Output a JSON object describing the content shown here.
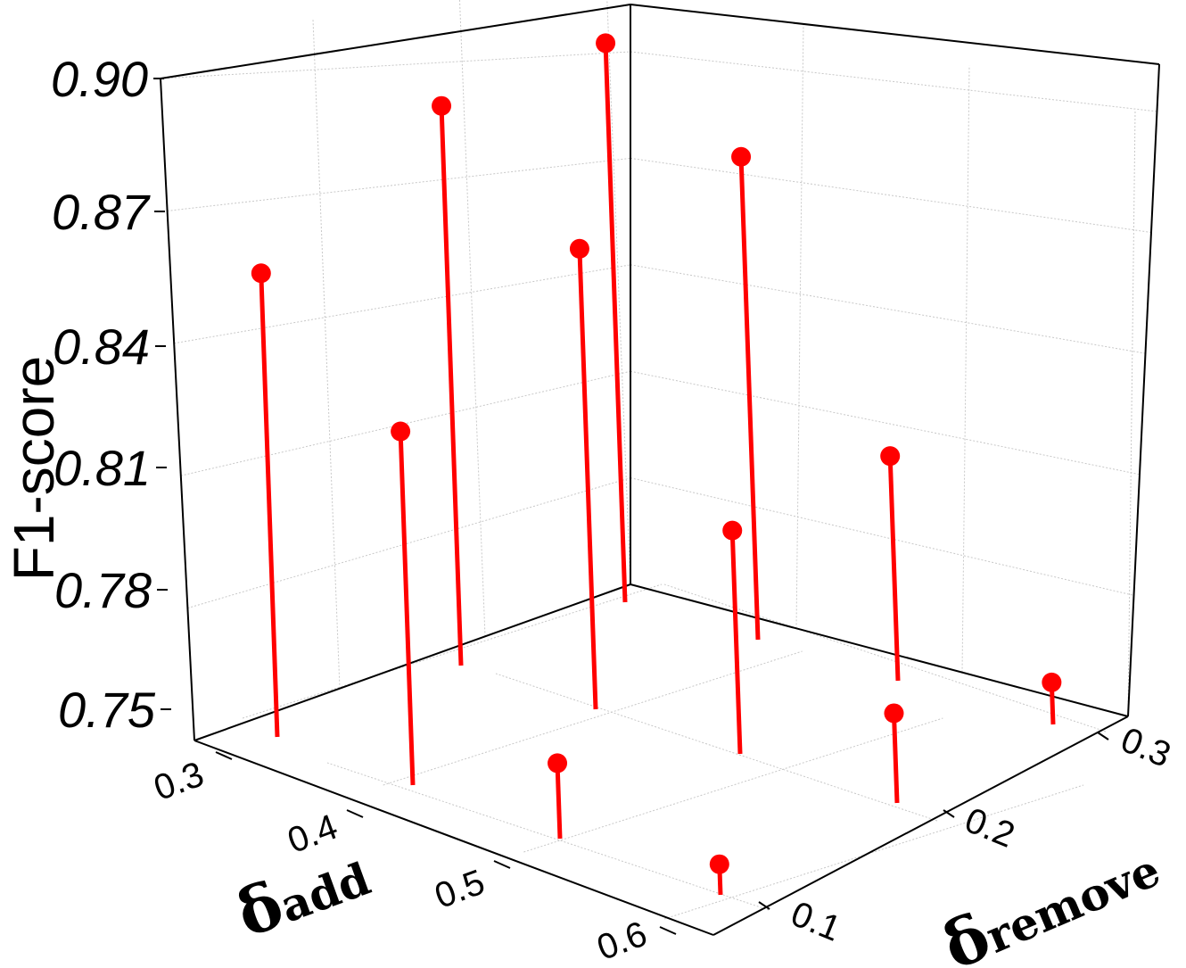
{
  "chart_data": {
    "type": "scatter",
    "style": "3d-stem",
    "title": "",
    "xlabel": "δadd",
    "ylabel": "δremove",
    "zlabel": "F1-score",
    "x_ticks": [
      "0.3",
      "0.4",
      "0.5",
      "0.6"
    ],
    "y_ticks": [
      "0.1",
      "0.2",
      "0.3"
    ],
    "z_ticks": [
      "0.75",
      "0.78",
      "0.81",
      "0.84",
      "0.87",
      "0.90"
    ],
    "xlim": [
      0.3,
      0.6
    ],
    "ylim": [
      0.1,
      0.3
    ],
    "zlim": [
      0.75,
      0.9
    ],
    "grid": true,
    "marker_color": "#ff0000",
    "points": [
      {
        "x": 0.3,
        "y": 0.1,
        "z": 0.87
      },
      {
        "x": 0.3,
        "y": 0.2,
        "z": 0.904
      },
      {
        "x": 0.3,
        "y": 0.3,
        "z": 0.913
      },
      {
        "x": 0.4,
        "y": 0.1,
        "z": 0.838
      },
      {
        "x": 0.4,
        "y": 0.2,
        "z": 0.872
      },
      {
        "x": 0.4,
        "y": 0.3,
        "z": 0.886
      },
      {
        "x": 0.5,
        "y": 0.1,
        "z": 0.768
      },
      {
        "x": 0.5,
        "y": 0.2,
        "z": 0.807
      },
      {
        "x": 0.5,
        "y": 0.3,
        "z": 0.811
      },
      {
        "x": 0.6,
        "y": 0.1,
        "z": 0.757
      },
      {
        "x": 0.6,
        "y": 0.2,
        "z": 0.772
      },
      {
        "x": 0.6,
        "y": 0.3,
        "z": 0.761
      }
    ]
  }
}
